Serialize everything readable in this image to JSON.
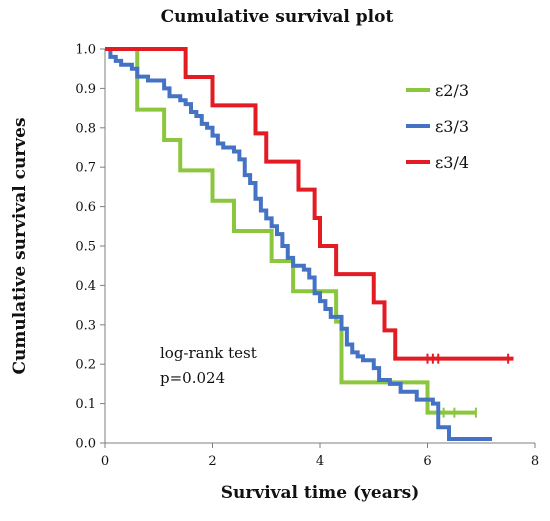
{
  "chart_data": {
    "type": "line",
    "title": "Cumulative survival plot",
    "xlabel": "Survival time (years)",
    "ylabel": "Cumulative survival curves",
    "xlim": [
      0,
      8
    ],
    "ylim": [
      0.0,
      1.0
    ],
    "x_ticks": [
      "0",
      "2",
      "4",
      "6",
      "8"
    ],
    "y_ticks": [
      "0.0",
      "0.1",
      "0.2",
      "0.3",
      "0.4",
      "0.5",
      "0.6",
      "0.7",
      "0.8",
      "0.9",
      "1.0"
    ],
    "grid": false,
    "legend_position": "top-right",
    "annotation": [
      "log-rank test",
      "p=0.024"
    ],
    "series": [
      {
        "name": "ε2/3",
        "color": "#8cc63f",
        "steps": [
          [
            0,
            1.0
          ],
          [
            0.6,
            0.846
          ],
          [
            1.1,
            0.769
          ],
          [
            1.4,
            0.692
          ],
          [
            2.0,
            0.615
          ],
          [
            2.4,
            0.538
          ],
          [
            3.1,
            0.462
          ],
          [
            3.5,
            0.385
          ],
          [
            4.3,
            0.308
          ],
          [
            4.4,
            0.154
          ],
          [
            6.0,
            0.077
          ],
          [
            6.9,
            0.077
          ]
        ],
        "censored": [
          6.2,
          6.3,
          6.5,
          6.9
        ]
      },
      {
        "name": "ε3/3",
        "color": "#4472c4",
        "steps": [
          [
            0,
            1.0
          ],
          [
            0.1,
            0.98
          ],
          [
            0.2,
            0.97
          ],
          [
            0.3,
            0.96
          ],
          [
            0.5,
            0.95
          ],
          [
            0.6,
            0.93
          ],
          [
            0.8,
            0.92
          ],
          [
            1.1,
            0.9
          ],
          [
            1.2,
            0.88
          ],
          [
            1.4,
            0.87
          ],
          [
            1.5,
            0.86
          ],
          [
            1.6,
            0.84
          ],
          [
            1.7,
            0.83
          ],
          [
            1.8,
            0.81
          ],
          [
            1.9,
            0.8
          ],
          [
            2.0,
            0.78
          ],
          [
            2.1,
            0.76
          ],
          [
            2.2,
            0.75
          ],
          [
            2.4,
            0.74
          ],
          [
            2.5,
            0.72
          ],
          [
            2.6,
            0.68
          ],
          [
            2.7,
            0.66
          ],
          [
            2.8,
            0.62
          ],
          [
            2.9,
            0.59
          ],
          [
            3.0,
            0.57
          ],
          [
            3.1,
            0.55
          ],
          [
            3.2,
            0.53
          ],
          [
            3.3,
            0.5
          ],
          [
            3.4,
            0.47
          ],
          [
            3.5,
            0.45
          ],
          [
            3.7,
            0.44
          ],
          [
            3.8,
            0.42
          ],
          [
            3.9,
            0.38
          ],
          [
            4.0,
            0.36
          ],
          [
            4.1,
            0.34
          ],
          [
            4.2,
            0.32
          ],
          [
            4.4,
            0.29
          ],
          [
            4.5,
            0.25
          ],
          [
            4.6,
            0.23
          ],
          [
            4.7,
            0.22
          ],
          [
            4.8,
            0.21
          ],
          [
            5.0,
            0.19
          ],
          [
            5.1,
            0.16
          ],
          [
            5.3,
            0.15
          ],
          [
            5.5,
            0.13
          ],
          [
            5.8,
            0.11
          ],
          [
            6.1,
            0.1
          ],
          [
            6.2,
            0.04
          ],
          [
            6.4,
            0.01
          ],
          [
            7.2,
            0.01
          ]
        ],
        "censored": []
      },
      {
        "name": "ε3/4",
        "color": "#e31b23",
        "steps": [
          [
            0,
            1.0
          ],
          [
            1.5,
            0.929
          ],
          [
            2.0,
            0.857
          ],
          [
            2.8,
            0.786
          ],
          [
            3.0,
            0.714
          ],
          [
            3.6,
            0.643
          ],
          [
            3.9,
            0.571
          ],
          [
            4.0,
            0.5
          ],
          [
            4.3,
            0.4286
          ],
          [
            5.0,
            0.357
          ],
          [
            5.2,
            0.286
          ],
          [
            5.4,
            0.214
          ],
          [
            7.6,
            0.214
          ]
        ],
        "censored": [
          6.0,
          6.1,
          6.2,
          7.5
        ]
      }
    ]
  }
}
